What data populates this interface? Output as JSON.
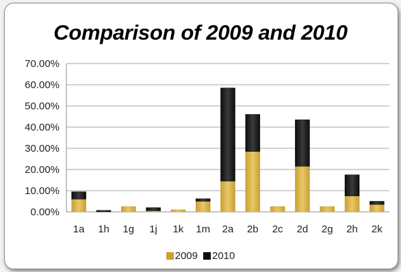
{
  "chart_data": {
    "type": "bar",
    "stacked": true,
    "title": "Comparison of 2009 and 2010",
    "xlabel": "",
    "ylabel": "",
    "ylim": [
      0,
      0.7
    ],
    "yticks": [
      "0.00%",
      "10.00%",
      "20.00%",
      "30.00%",
      "40.00%",
      "50.00%",
      "60.00%",
      "70.00%"
    ],
    "ytick_values": [
      0,
      0.1,
      0.2,
      0.3,
      0.4,
      0.5,
      0.6,
      0.7
    ],
    "grid": true,
    "legend_position": "bottom",
    "categories": [
      "1a",
      "1h",
      "1g",
      "1j",
      "1k",
      "1m",
      "2a",
      "2b",
      "2c",
      "2d",
      "2g",
      "2h",
      "2k"
    ],
    "series": [
      {
        "name": "2009",
        "color": "#c9a032",
        "values": [
          0.06,
          0.0,
          0.025,
          0.005,
          0.01,
          0.05,
          0.145,
          0.285,
          0.025,
          0.215,
          0.025,
          0.075,
          0.035
        ]
      },
      {
        "name": "2010",
        "color": "#0d0d0d",
        "values": [
          0.035,
          0.007,
          0.0,
          0.015,
          0.0,
          0.012,
          0.44,
          0.175,
          0.0,
          0.22,
          0.0,
          0.1,
          0.015
        ]
      }
    ]
  }
}
